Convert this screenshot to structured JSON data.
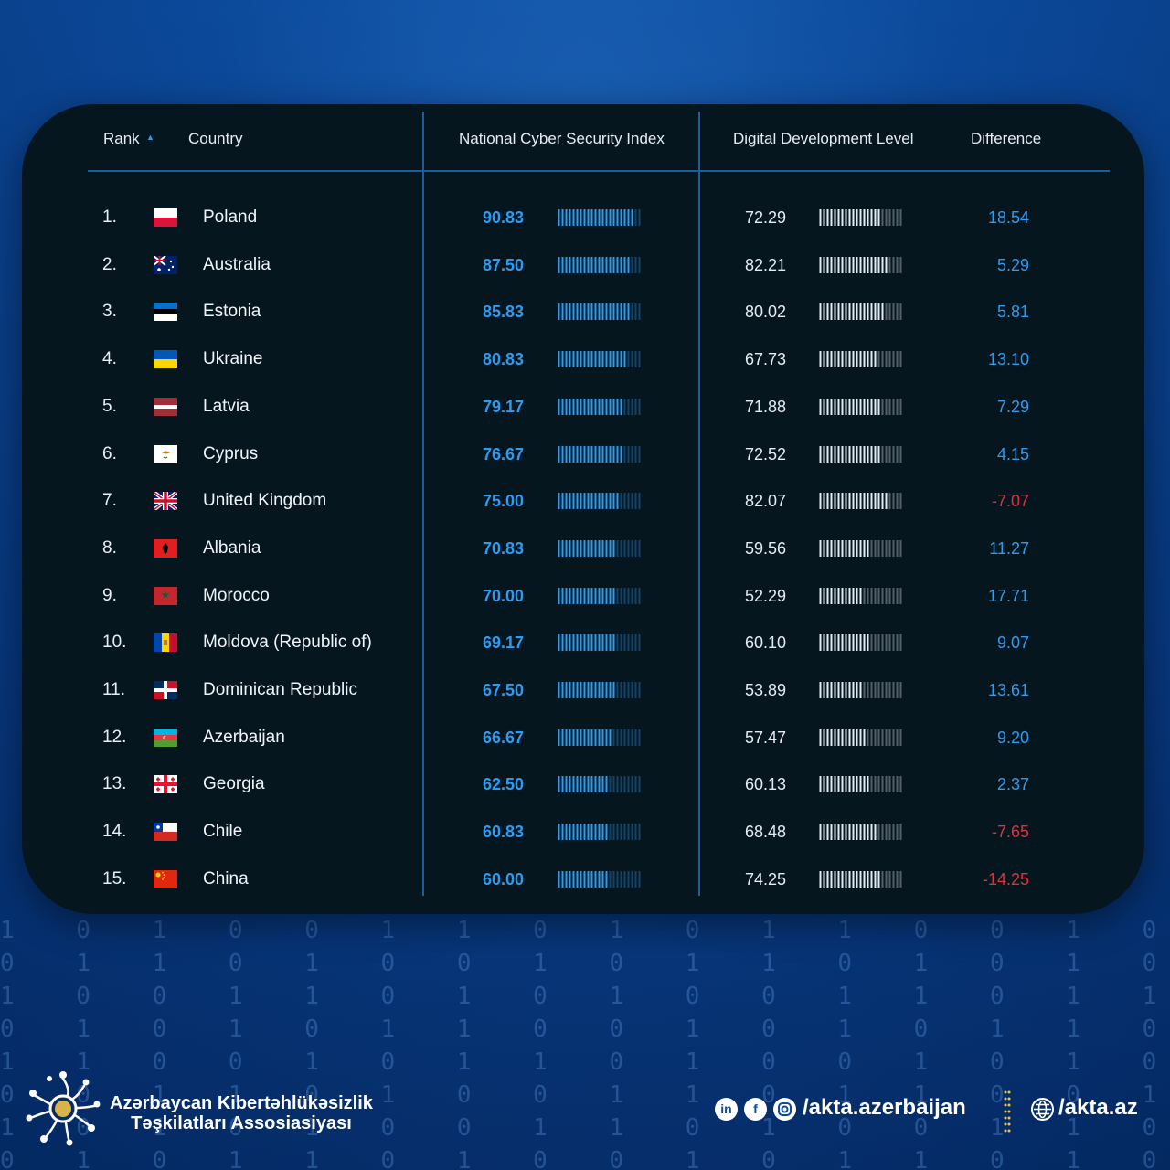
{
  "table": {
    "headers": {
      "rank": "Rank",
      "country": "Country",
      "ncsi": "National Cyber Security Index",
      "ddl": "Digital Development Level",
      "difference": "Difference"
    },
    "sort_indicator": "▲",
    "rows": [
      {
        "rank": "1.",
        "country": "Poland",
        "flag": "poland-flag",
        "ncsi": "90.83",
        "ddl": "72.29",
        "difference": "18.54"
      },
      {
        "rank": "2.",
        "country": "Australia",
        "flag": "australia-flag",
        "ncsi": "87.50",
        "ddl": "82.21",
        "difference": "5.29"
      },
      {
        "rank": "3.",
        "country": "Estonia",
        "flag": "estonia-flag",
        "ncsi": "85.83",
        "ddl": "80.02",
        "difference": "5.81"
      },
      {
        "rank": "4.",
        "country": "Ukraine",
        "flag": "ukraine-flag",
        "ncsi": "80.83",
        "ddl": "67.73",
        "difference": "13.10"
      },
      {
        "rank": "5.",
        "country": "Latvia",
        "flag": "latvia-flag",
        "ncsi": "79.17",
        "ddl": "71.88",
        "difference": "7.29"
      },
      {
        "rank": "6.",
        "country": "Cyprus",
        "flag": "cyprus-flag",
        "ncsi": "76.67",
        "ddl": "72.52",
        "difference": "4.15"
      },
      {
        "rank": "7.",
        "country": "United Kingdom",
        "flag": "uk-flag",
        "ncsi": "75.00",
        "ddl": "82.07",
        "difference": "-7.07"
      },
      {
        "rank": "8.",
        "country": "Albania",
        "flag": "albania-flag",
        "ncsi": "70.83",
        "ddl": "59.56",
        "difference": "11.27"
      },
      {
        "rank": "9.",
        "country": "Morocco",
        "flag": "morocco-flag",
        "ncsi": "70.00",
        "ddl": "52.29",
        "difference": "17.71"
      },
      {
        "rank": "10.",
        "country": "Moldova (Republic of)",
        "flag": "moldova-flag",
        "ncsi": "69.17",
        "ddl": "60.10",
        "difference": "9.07"
      },
      {
        "rank": "11.",
        "country": "Dominican Republic",
        "flag": "dominican-republic-flag",
        "ncsi": "67.50",
        "ddl": "53.89",
        "difference": "13.61"
      },
      {
        "rank": "12.",
        "country": "Azerbaijan",
        "flag": "azerbaijan-flag",
        "ncsi": "66.67",
        "ddl": "57.47",
        "difference": "9.20"
      },
      {
        "rank": "13.",
        "country": "Georgia",
        "flag": "georgia-flag",
        "ncsi": "62.50",
        "ddl": "60.13",
        "difference": "2.37"
      },
      {
        "rank": "14.",
        "country": "Chile",
        "flag": "chile-flag",
        "ncsi": "60.83",
        "ddl": "68.48",
        "difference": "-7.65"
      },
      {
        "rank": "15.",
        "country": "China",
        "flag": "china-flag",
        "ncsi": "60.00",
        "ddl": "74.25",
        "difference": "-14.25"
      }
    ]
  },
  "colors": {
    "ncsi": "#2d9bf0",
    "ddl_bar": "#e4ecf2",
    "positive": "#2d9bf0",
    "negative": "#e0313a",
    "panel": "#06161f"
  },
  "footer": {
    "org_line1": "Azərbaycan Kibertəhlükəsizlik",
    "org_line2": "Təşkilatları Assosiasiyası",
    "social_icons": [
      "linkedin-icon",
      "facebook-icon",
      "instagram-icon"
    ],
    "social_handle": "/akta.azerbaijan",
    "web_icon": "globe-icon",
    "website": "/akta.az"
  }
}
